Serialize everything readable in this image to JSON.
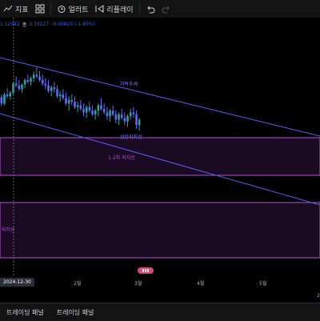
{
  "toolbar": {
    "indicators_label": "지표",
    "alerts_label": "얼러트",
    "replay_label": "리플레이"
  },
  "legend": {
    "prev_value": "1.12042",
    "change_label": "종",
    "close_value": "0.33127",
    "change_value": "-0.00623 (-1.85%)"
  },
  "annotations": {
    "lower_channel": "하락추세",
    "support_line": "상승지지선",
    "zone1": "1-2차 지지선",
    "zone2": "지지선"
  },
  "time_axis": {
    "current_date": "2024-12-30",
    "ticks": [
      "2월",
      "3월",
      "4월",
      "5월"
    ],
    "right_label": "2"
  },
  "bottom": {
    "tabs": [
      "트레이딩 패널",
      "트레이딩 패널"
    ]
  },
  "colors": {
    "up": "#26a69a",
    "down": "#5a6cff",
    "channel": "#5b5cff",
    "zone_border": "#b452d8",
    "zone_fill": "#1a0a22",
    "crosshair": "#6a6d78"
  },
  "chart_data": {
    "type": "candlestick",
    "candles": [
      [
        105,
        108,
        95,
        98
      ],
      [
        98,
        110,
        96,
        108
      ],
      [
        108,
        115,
        104,
        106
      ],
      [
        106,
        112,
        102,
        110
      ],
      [
        110,
        122,
        108,
        120
      ],
      [
        120,
        128,
        116,
        118
      ],
      [
        118,
        124,
        112,
        114
      ],
      [
        114,
        120,
        110,
        119
      ],
      [
        119,
        126,
        115,
        124
      ],
      [
        124,
        130,
        120,
        122
      ],
      [
        122,
        128,
        118,
        126
      ],
      [
        126,
        134,
        122,
        130
      ],
      [
        130,
        138,
        126,
        128
      ],
      [
        128,
        134,
        122,
        124
      ],
      [
        124,
        130,
        118,
        120
      ],
      [
        120,
        126,
        114,
        118
      ],
      [
        118,
        124,
        110,
        112
      ],
      [
        112,
        118,
        106,
        116
      ],
      [
        116,
        122,
        110,
        114
      ],
      [
        114,
        118,
        104,
        106
      ],
      [
        106,
        112,
        100,
        108
      ],
      [
        108,
        114,
        102,
        104
      ],
      [
        104,
        110,
        96,
        98
      ],
      [
        98,
        106,
        90,
        102
      ],
      [
        102,
        108,
        96,
        100
      ],
      [
        100,
        106,
        92,
        94
      ],
      [
        94,
        100,
        88,
        96
      ],
      [
        96,
        102,
        90,
        92
      ],
      [
        92,
        98,
        84,
        88
      ],
      [
        88,
        96,
        82,
        94
      ],
      [
        94,
        100,
        88,
        90
      ],
      [
        90,
        96,
        84,
        86
      ],
      [
        86,
        92,
        80,
        90
      ],
      [
        90,
        98,
        84,
        96
      ],
      [
        96,
        104,
        90,
        92
      ],
      [
        92,
        98,
        86,
        88
      ],
      [
        88,
        94,
        80,
        84
      ],
      [
        84,
        92,
        78,
        90
      ],
      [
        90,
        96,
        84,
        86
      ],
      [
        86,
        90,
        76,
        80
      ],
      [
        80,
        88,
        74,
        86
      ],
      [
        86,
        92,
        80,
        82
      ],
      [
        82,
        88,
        74,
        78
      ],
      [
        78,
        86,
        72,
        84
      ],
      [
        84,
        92,
        80,
        88
      ],
      [
        88,
        94,
        82,
        86
      ],
      [
        86,
        90,
        70,
        74
      ],
      [
        74,
        82,
        68,
        80
      ]
    ]
  }
}
